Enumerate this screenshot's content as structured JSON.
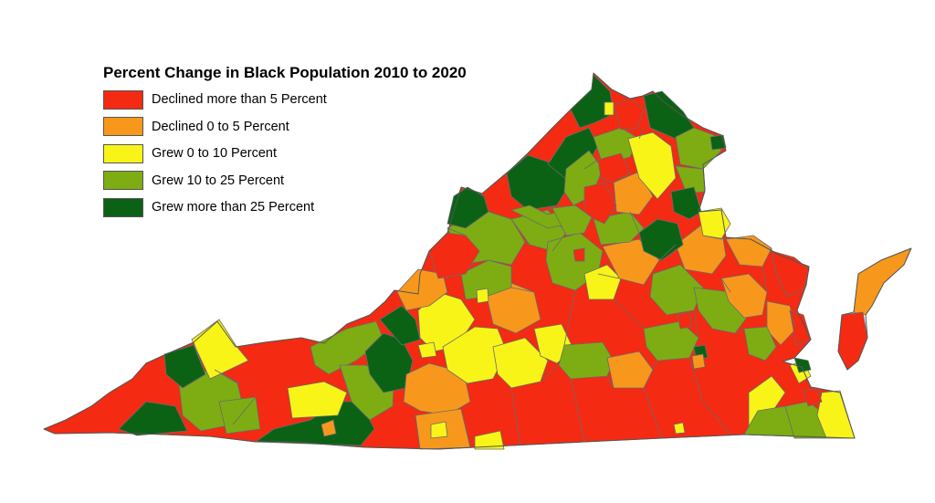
{
  "map": {
    "title": "Percent Change in Black Population 2010 to 2020",
    "legend": [
      {
        "label": "Declined more than 5 Percent",
        "color": "#f42a12",
        "class_id": "declined-more-than-5"
      },
      {
        "label": "Declined 0 to 5 Percent",
        "color": "#f7981c",
        "class_id": "declined-0-to-5"
      },
      {
        "label": "Grew 0 to 10 Percent",
        "color": "#f8f417",
        "class_id": "grew-0-to-10"
      },
      {
        "label": "Grew 10 to 25 Percent",
        "color": "#7dad13",
        "class_id": "grew-10-to-25"
      },
      {
        "label": "Grew more than 25 Percent",
        "color": "#0b6215",
        "class_id": "grew-more-than-25"
      }
    ],
    "boundary_color": "#6b6b6b"
  }
}
